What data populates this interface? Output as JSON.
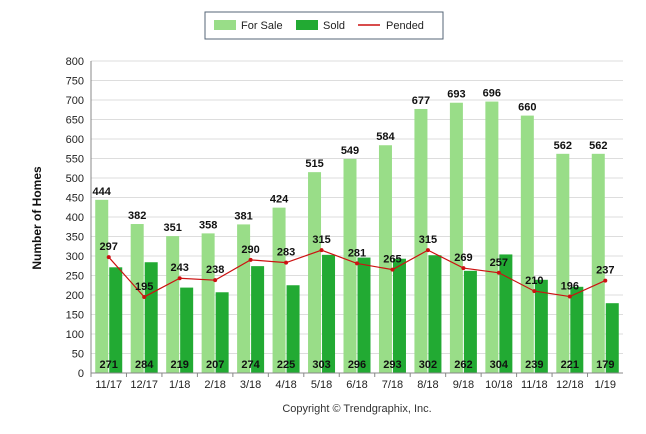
{
  "chart_data": {
    "type": "bar",
    "categories": [
      "11/17",
      "12/17",
      "1/18",
      "2/18",
      "3/18",
      "4/18",
      "5/18",
      "6/18",
      "7/18",
      "8/18",
      "9/18",
      "10/18",
      "11/18",
      "12/18",
      "1/19"
    ],
    "series": [
      {
        "name": "For Sale",
        "type": "bar",
        "color": "#99dd88",
        "values": [
          444,
          382,
          351,
          358,
          381,
          424,
          515,
          549,
          584,
          677,
          693,
          696,
          660,
          562,
          562
        ]
      },
      {
        "name": "Sold",
        "type": "bar",
        "color": "#22aa33",
        "values": [
          271,
          284,
          219,
          207,
          274,
          225,
          303,
          296,
          293,
          302,
          262,
          304,
          239,
          221,
          179
        ]
      },
      {
        "name": "Pended",
        "type": "line",
        "color": "#cc1111",
        "values": [
          297,
          195,
          243,
          238,
          290,
          283,
          315,
          281,
          265,
          315,
          269,
          257,
          210,
          196,
          237
        ]
      }
    ],
    "ylabel": "Number of Homes",
    "xlabel": "",
    "ylim": [
      0,
      800
    ],
    "yticks": [
      "0",
      "50",
      "100",
      "150",
      "200",
      "250",
      "300",
      "350",
      "400",
      "450",
      "500",
      "550",
      "600",
      "650",
      "700",
      "750",
      "800"
    ],
    "grid": true,
    "legend_position": "top-center",
    "footer": "Copyright © Trendgraphix, Inc."
  }
}
